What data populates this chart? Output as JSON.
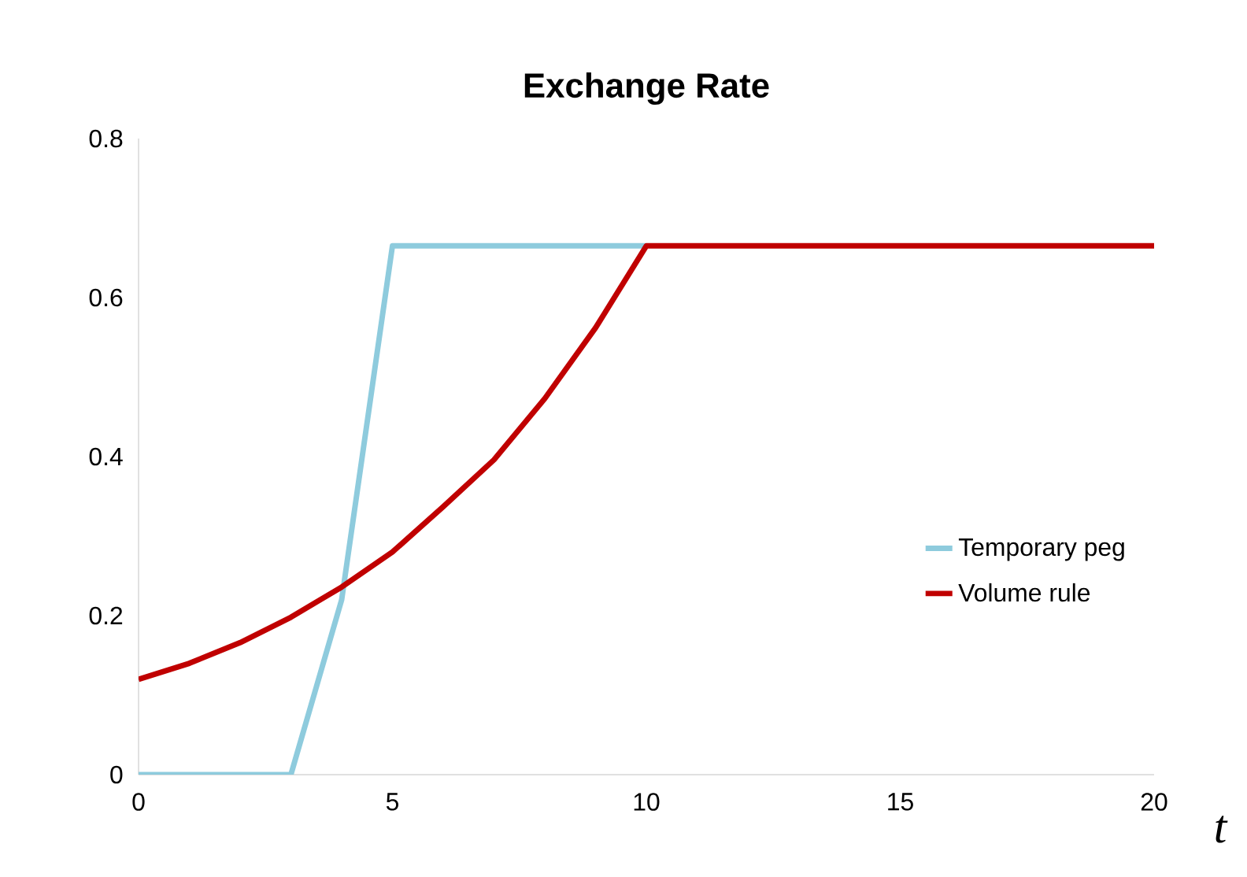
{
  "chart_data": {
    "type": "line",
    "title": "Exchange Rate",
    "xlabel": "t",
    "x": [
      0,
      1,
      2,
      3,
      4,
      5,
      6,
      7,
      8,
      9,
      10,
      11,
      12,
      13,
      14,
      15,
      16,
      17,
      18,
      19,
      20
    ],
    "series": [
      {
        "name": "Temporary peg",
        "color": "#8ecbdd",
        "values": [
          0,
          0,
          0,
          0,
          0.22,
          0.665,
          0.665,
          0.665,
          0.665,
          0.665,
          0.665,
          null,
          null,
          null,
          null,
          null,
          null,
          null,
          null,
          null,
          null
        ]
      },
      {
        "name": "Volume rule",
        "color": "#c00000",
        "values": [
          0.12,
          0.14,
          0.166,
          0.198,
          0.236,
          0.28,
          0.337,
          0.396,
          0.473,
          0.562,
          0.665,
          0.665,
          0.665,
          0.665,
          0.665,
          0.665,
          0.665,
          0.665,
          0.665,
          0.665,
          0.665
        ]
      }
    ],
    "xlim": [
      0,
      20
    ],
    "xticks": [
      0,
      5,
      10,
      15,
      20
    ],
    "ylim": [
      0,
      0.8
    ],
    "yticks": [
      0,
      0.2,
      0.4,
      0.6,
      0.8
    ],
    "grid": false,
    "legend": "right",
    "marker": "none",
    "line_style": "solid"
  }
}
